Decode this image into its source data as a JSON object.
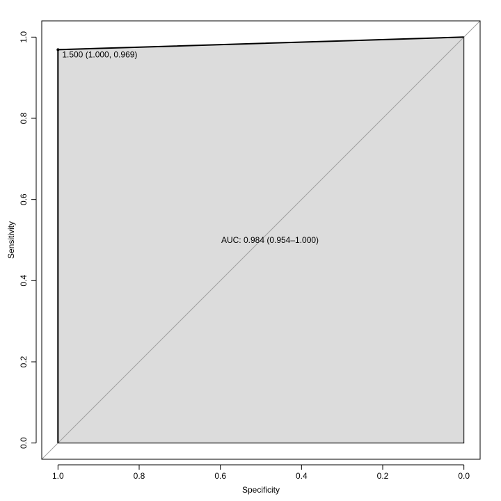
{
  "chart_data": {
    "type": "line",
    "title": "",
    "xlabel": "Specificity",
    "ylabel": "Sensitivity",
    "xlim": [
      1.04,
      -0.04
    ],
    "ylim": [
      -0.04,
      1.04
    ],
    "x_reversed": true,
    "xticks": [
      1.0,
      0.8,
      0.6,
      0.4,
      0.2,
      0.0
    ],
    "xtick_labels": [
      "1.0",
      "0.8",
      "0.6",
      "0.4",
      "0.2",
      "0.0"
    ],
    "yticks": [
      0.0,
      0.2,
      0.4,
      0.6,
      0.8,
      1.0
    ],
    "ytick_labels": [
      "0.0",
      "0.2",
      "0.4",
      "0.6",
      "0.8",
      "1.0"
    ],
    "grid": false,
    "series": [
      {
        "specificity": [
          1.0,
          1.0,
          0.0
        ],
        "sensitivity": [
          0.0,
          0.969,
          1.0
        ],
        "color": "#000000",
        "fill_auc": true,
        "fill_color": "#dcdcdc"
      }
    ],
    "reference_line": {
      "from": [
        1.04,
        -0.04
      ],
      "to": [
        -0.04,
        1.04
      ],
      "color": "#a0a0a0"
    },
    "threshold_point": {
      "specificity": 1.0,
      "sensitivity": 0.969,
      "label": "1.500 (1.000, 0.969)"
    },
    "auc_text": {
      "label": "AUC: 0.984 (0.954–1.000)",
      "specificity": 0.5,
      "sensitivity": 0.5
    }
  }
}
